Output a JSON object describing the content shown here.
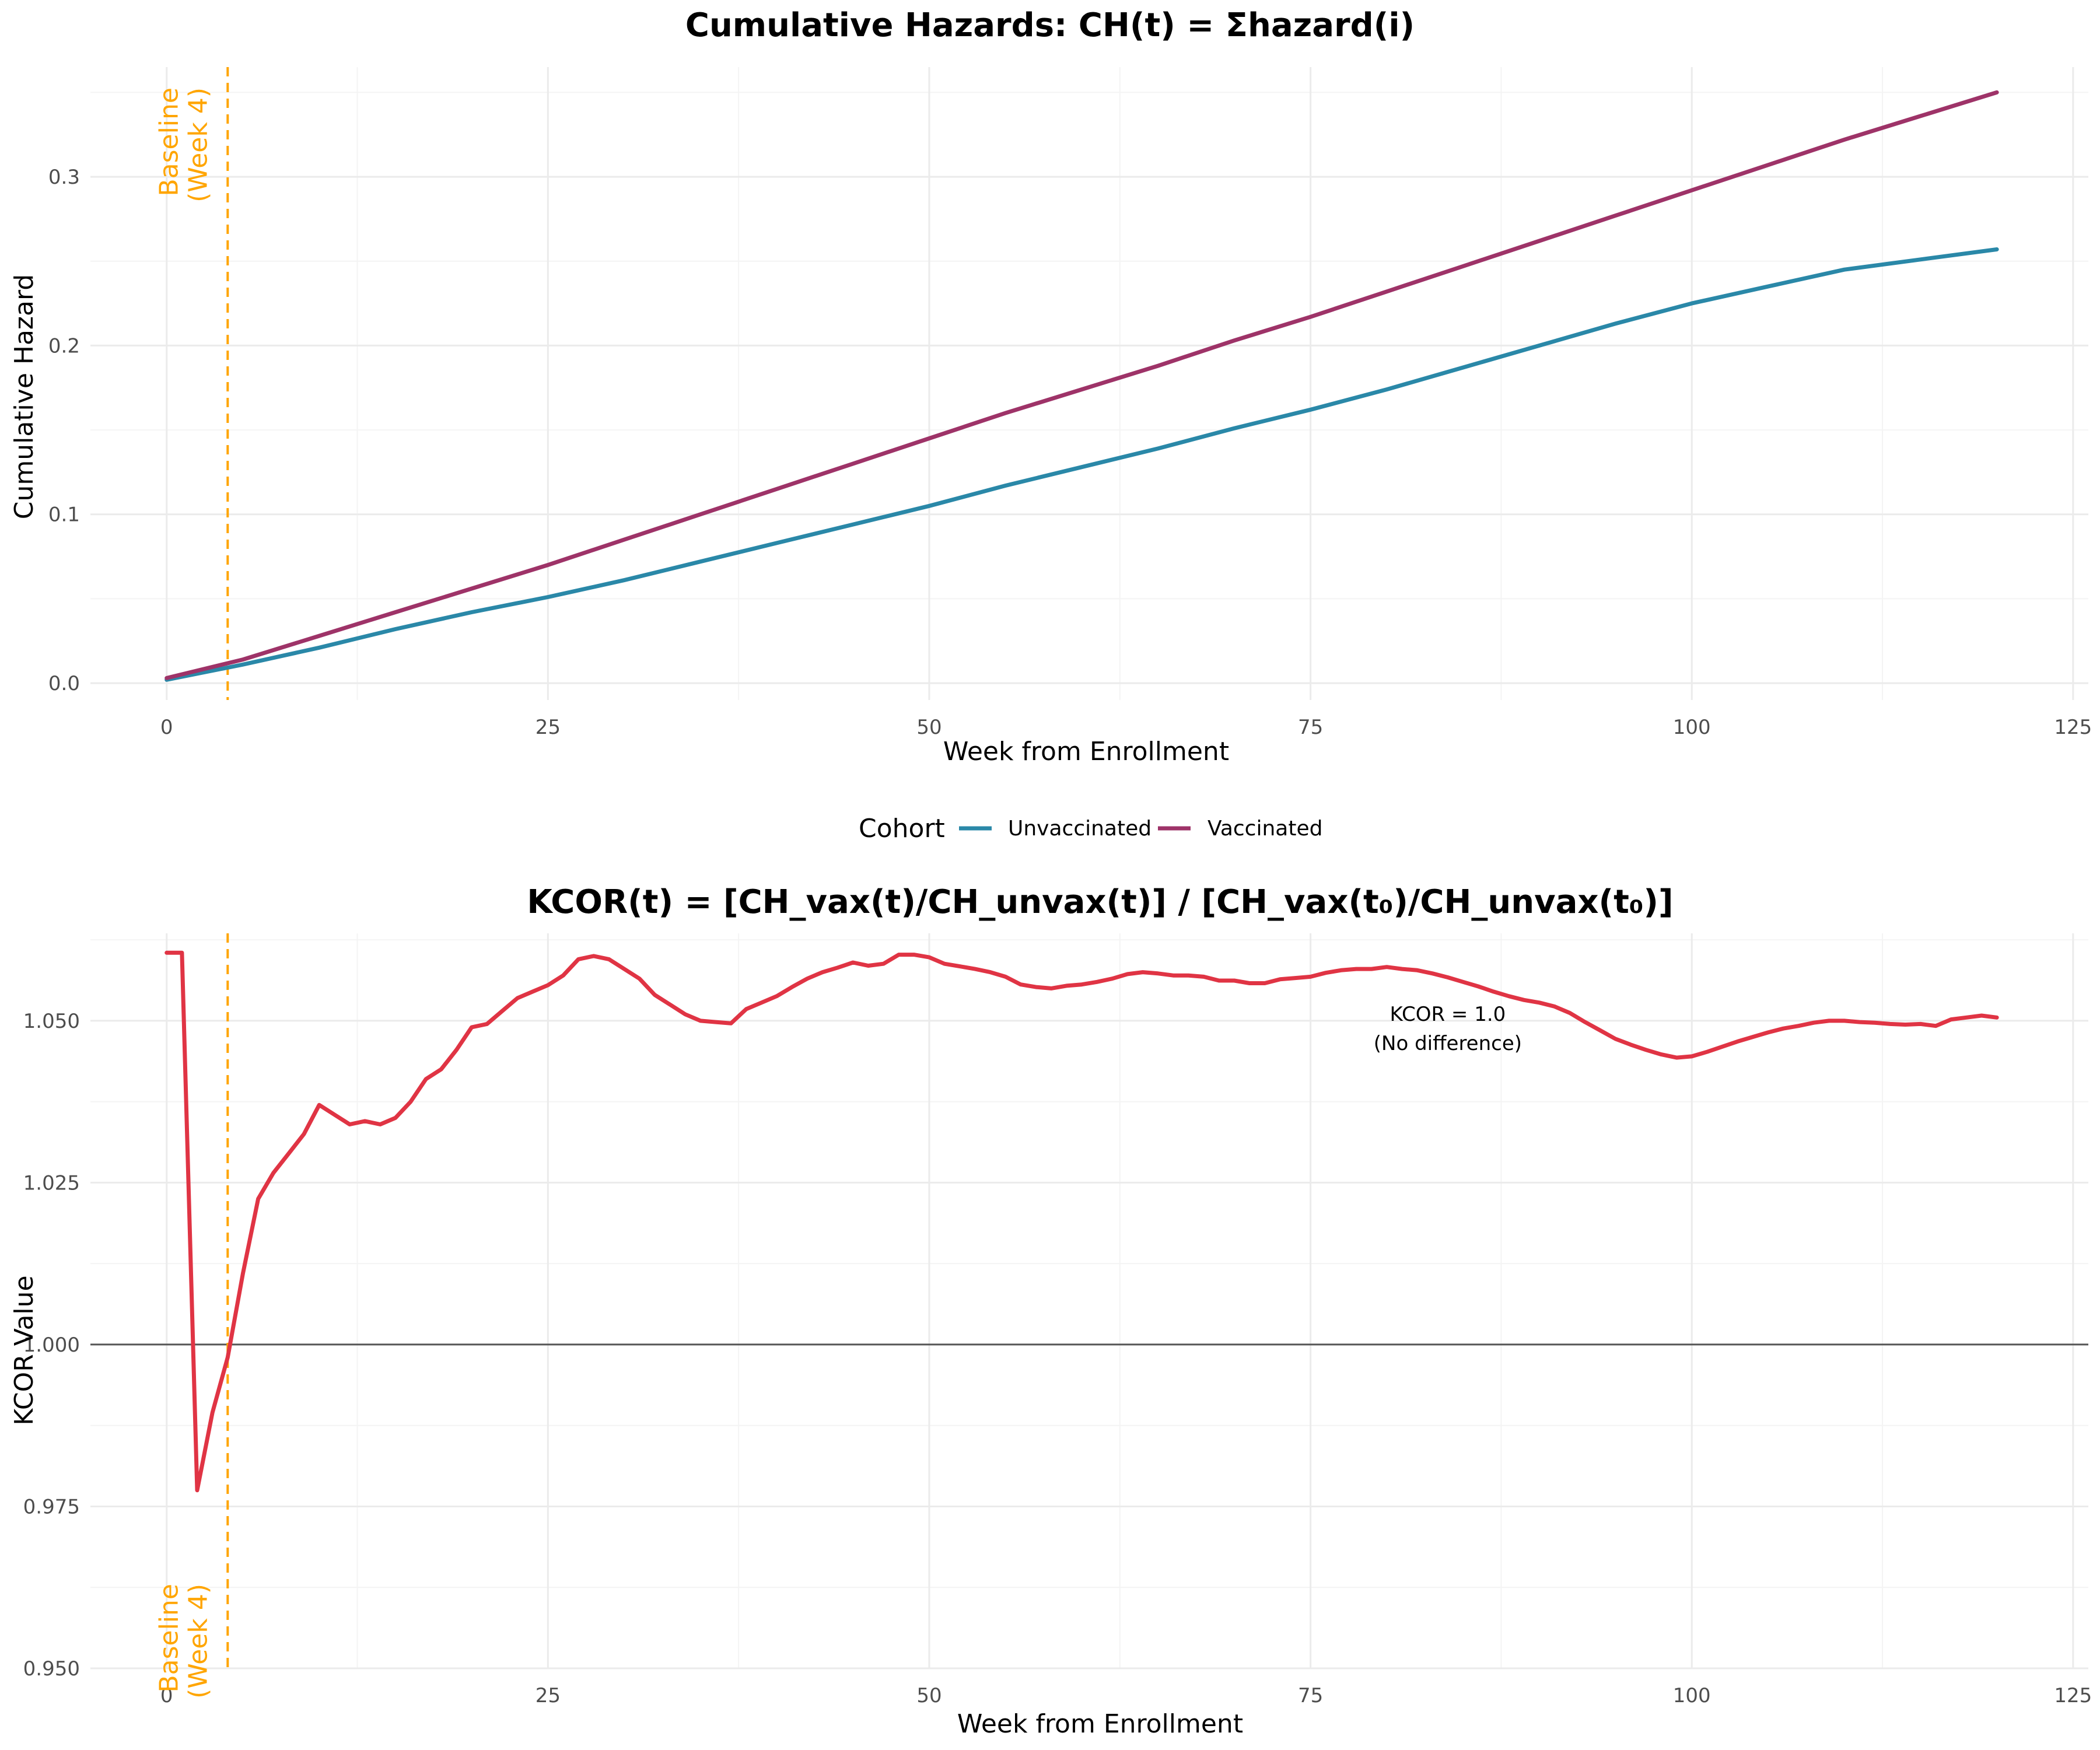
{
  "colors": {
    "unvaccinated": "#2A88A8",
    "vaccinated": "#9E3368",
    "kcor": "#E03444",
    "baseline": "#FFA500",
    "reference_line": "#555555",
    "grid_major": "#EBEBEB",
    "grid_minor": "#F4F4F4"
  },
  "legend": {
    "title": "Cohort",
    "position": "bottom-center",
    "items": [
      {
        "label": "Unvaccinated",
        "color": "#2A88A8"
      },
      {
        "label": "Vaccinated",
        "color": "#9E3368"
      }
    ]
  },
  "chart_data": [
    {
      "type": "line",
      "title": "Cumulative Hazards: CH(t) = Σhazard(i)",
      "xlabel": "Week from Enrollment",
      "ylabel": "Cumulative Hazard",
      "xlim": [
        -5,
        126
      ],
      "ylim": [
        -0.01,
        0.365
      ],
      "x_ticks": [
        0,
        25,
        50,
        75,
        100,
        125
      ],
      "x_tick_labels": [
        "0",
        "25",
        "50",
        "75",
        "100",
        "125"
      ],
      "y_ticks": [
        0.0,
        0.1,
        0.2,
        0.3
      ],
      "y_tick_labels": [
        "0.0",
        "0.1",
        "0.2",
        "0.3"
      ],
      "grid": true,
      "baseline": {
        "x": 4,
        "label_lines": [
          "Baseline",
          "(Week 4)"
        ]
      },
      "series": [
        {
          "name": "Unvaccinated",
          "x": [
            0,
            5,
            10,
            15,
            20,
            25,
            30,
            35,
            40,
            45,
            50,
            55,
            60,
            65,
            70,
            75,
            80,
            85,
            90,
            95,
            100,
            105,
            110,
            115,
            120
          ],
          "values": [
            0.002,
            0.011,
            0.021,
            0.032,
            0.042,
            0.051,
            0.061,
            0.072,
            0.083,
            0.094,
            0.105,
            0.117,
            0.128,
            0.139,
            0.151,
            0.162,
            0.174,
            0.187,
            0.2,
            0.213,
            0.225,
            0.235,
            0.245,
            0.251,
            0.257
          ]
        },
        {
          "name": "Vaccinated",
          "x": [
            0,
            5,
            10,
            15,
            20,
            25,
            30,
            35,
            40,
            45,
            50,
            55,
            60,
            65,
            70,
            75,
            80,
            85,
            90,
            95,
            100,
            105,
            110,
            115,
            120
          ],
          "values": [
            0.003,
            0.014,
            0.028,
            0.042,
            0.056,
            0.07,
            0.085,
            0.1,
            0.115,
            0.13,
            0.145,
            0.16,
            0.174,
            0.188,
            0.203,
            0.217,
            0.232,
            0.247,
            0.262,
            0.277,
            0.292,
            0.307,
            0.322,
            0.336,
            0.35
          ]
        }
      ]
    },
    {
      "type": "line",
      "title": "KCOR(t) = [CH_vax(t)/CH_unvax(t)] / [CH_vax(t₀)/CH_unvax(t₀)]",
      "xlabel": "Week from Enrollment",
      "ylabel": "KCOR Value",
      "xlim": [
        -5,
        126
      ],
      "ylim": [
        0.95,
        1.0635
      ],
      "x_ticks": [
        0,
        25,
        50,
        75,
        100,
        125
      ],
      "x_tick_labels": [
        "0",
        "25",
        "50",
        "75",
        "100",
        "125"
      ],
      "y_ticks": [
        0.95,
        0.975,
        1.0,
        1.025,
        1.05
      ],
      "y_tick_labels": [
        "0.950",
        "0.975",
        "1.000",
        "1.025",
        "1.050"
      ],
      "grid": true,
      "reference_line": {
        "y": 1.0
      },
      "baseline": {
        "x": 4,
        "label_lines": [
          "Baseline",
          "(Week 4)"
        ]
      },
      "annotation": {
        "x": 84,
        "y": 1.05,
        "lines": [
          "KCOR = 1.0",
          "(No difference)"
        ]
      },
      "series": [
        {
          "x": [
            0,
            1,
            2,
            3,
            4,
            5,
            6,
            7,
            8,
            9,
            10,
            11,
            12,
            13,
            14,
            15,
            16,
            17,
            18,
            19,
            20,
            21,
            22,
            23,
            24,
            25,
            26,
            27,
            28,
            29,
            30,
            31,
            32,
            33,
            34,
            35,
            36,
            37,
            38,
            39,
            40,
            41,
            42,
            43,
            44,
            45,
            46,
            47,
            48,
            49,
            50,
            51,
            52,
            53,
            54,
            55,
            56,
            57,
            58,
            59,
            60,
            61,
            62,
            63,
            64,
            65,
            66,
            67,
            68,
            69,
            70,
            71,
            72,
            73,
            74,
            75,
            76,
            77,
            78,
            79,
            80,
            81,
            82,
            83,
            84,
            85,
            86,
            87,
            88,
            89,
            90,
            91,
            92,
            93,
            94,
            95,
            96,
            97,
            98,
            99,
            100,
            101,
            102,
            103,
            104,
            105,
            106,
            107,
            108,
            109,
            110,
            111,
            112,
            113,
            114,
            115,
            116,
            117,
            118,
            119,
            120
          ],
          "values": [
            1.0605,
            1.0605,
            0.9775,
            0.9895,
            0.998,
            1.011,
            1.0225,
            1.0265,
            1.0295,
            1.0325,
            1.037,
            1.0355,
            1.034,
            1.0345,
            1.034,
            1.035,
            1.0375,
            1.041,
            1.0425,
            1.0455,
            1.049,
            1.0495,
            1.0515,
            1.0535,
            1.0545,
            1.0555,
            1.057,
            1.0595,
            1.06,
            1.0595,
            1.058,
            1.0565,
            1.054,
            1.0525,
            1.051,
            1.05,
            1.0498,
            1.0496,
            1.0518,
            1.0528,
            1.0538,
            1.0552,
            1.0565,
            1.0575,
            1.0582,
            1.059,
            1.0585,
            1.0588,
            1.0602,
            1.0602,
            1.0598,
            1.0588,
            1.0584,
            1.058,
            1.0575,
            1.0568,
            1.0556,
            1.0552,
            1.055,
            1.0554,
            1.0556,
            1.056,
            1.0565,
            1.0572,
            1.0575,
            1.0573,
            1.057,
            1.057,
            1.0568,
            1.0562,
            1.0562,
            1.0558,
            1.0558,
            1.0564,
            1.0566,
            1.0568,
            1.0574,
            1.0578,
            1.058,
            1.058,
            1.0583,
            1.058,
            1.0578,
            1.0573,
            1.0567,
            1.056,
            1.0553,
            1.0545,
            1.0538,
            1.0532,
            1.0528,
            1.0522,
            1.0512,
            1.0498,
            1.0485,
            1.0472,
            1.0463,
            1.0455,
            1.0448,
            1.0443,
            1.0445,
            1.0452,
            1.046,
            1.0468,
            1.0475,
            1.0482,
            1.0488,
            1.0492,
            1.0497,
            1.05,
            1.05,
            1.0498,
            1.0497,
            1.0495,
            1.0494,
            1.0495,
            1.0492,
            1.0502,
            1.0505,
            1.0508,
            1.0505
          ]
        }
      ]
    }
  ]
}
